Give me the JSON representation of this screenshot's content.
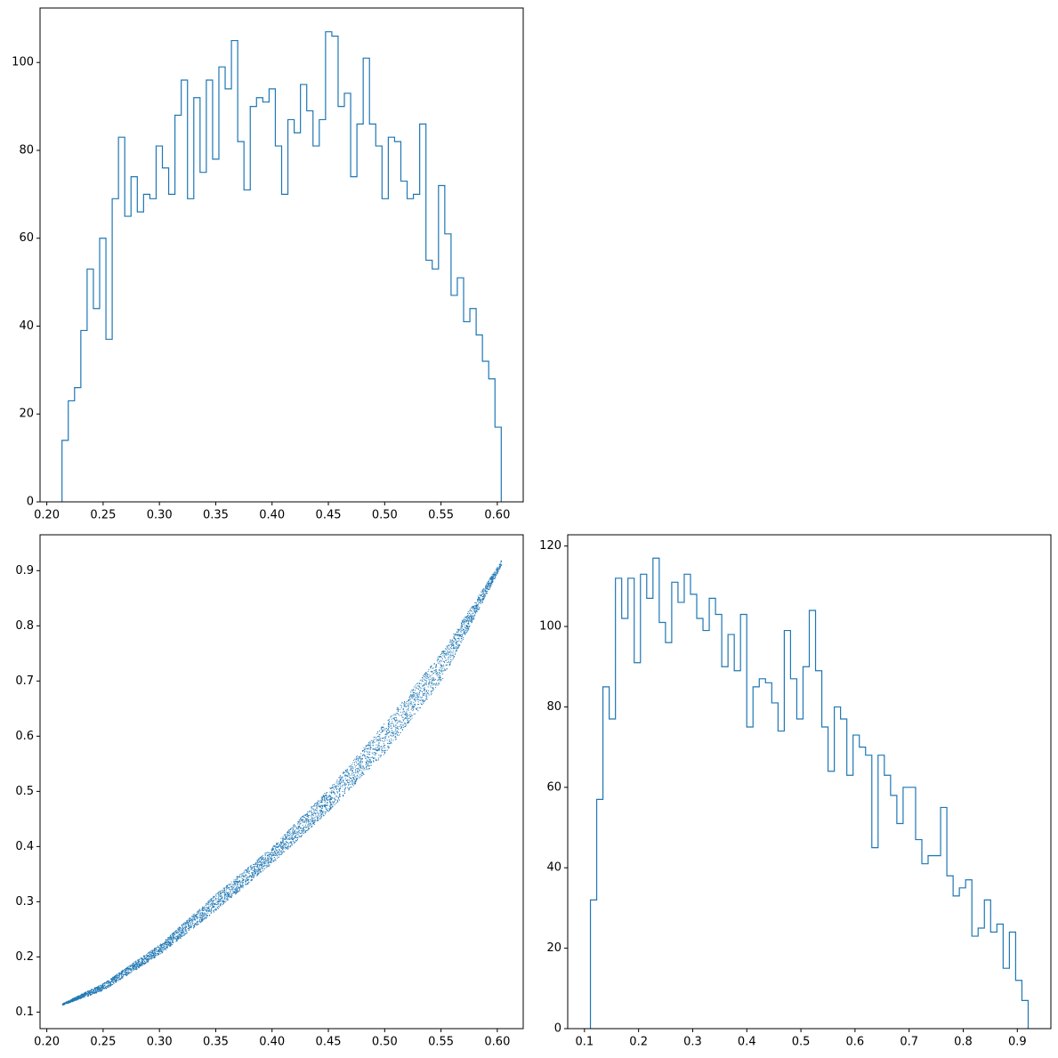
{
  "figure": {
    "accent": "#1f77b4"
  },
  "chart_data": [
    {
      "id": "hist-top-left",
      "type": "histogram",
      "title": "",
      "xlabel": "",
      "ylabel": "",
      "xlim": [
        0.194,
        0.623
      ],
      "ylim": [
        0,
        112.4
      ],
      "xticks": [
        0.2,
        0.25,
        0.3,
        0.35,
        0.4,
        0.45,
        0.5,
        0.55,
        0.6
      ],
      "xtick_labels": [
        "0.20",
        "0.25",
        "0.30",
        "0.35",
        "0.40",
        "0.45",
        "0.50",
        "0.55",
        "0.60"
      ],
      "yticks": [
        0,
        20,
        40,
        60,
        80,
        100
      ],
      "ytick_labels": [
        "0",
        "20",
        "40",
        "60",
        "80",
        "100"
      ],
      "bin_start": 0.2135,
      "bin_end": 0.6035,
      "color": "#1f77b4",
      "counts": [
        14,
        23,
        26,
        39,
        53,
        44,
        60,
        37,
        69,
        83,
        65,
        74,
        66,
        70,
        69,
        81,
        76,
        70,
        88,
        96,
        69,
        92,
        75,
        96,
        78,
        99,
        94,
        105,
        82,
        71,
        90,
        92,
        91,
        94,
        81,
        70,
        87,
        84,
        95,
        89,
        81,
        87,
        107,
        106,
        90,
        93,
        74,
        86,
        101,
        86,
        81,
        69,
        83,
        82,
        73,
        69,
        70,
        86,
        55,
        53,
        72,
        61,
        47,
        51,
        41,
        44,
        38,
        32,
        28,
        17
      ]
    },
    {
      "id": "scatter-bottom-left",
      "type": "scatter",
      "title": "",
      "xlabel": "",
      "ylabel": "",
      "xlim": [
        0.194,
        0.623
      ],
      "ylim": [
        0.07,
        0.965
      ],
      "xticks": [
        0.2,
        0.25,
        0.3,
        0.35,
        0.4,
        0.45,
        0.5,
        0.55,
        0.6
      ],
      "xtick_labels": [
        "0.20",
        "0.25",
        "0.30",
        "0.35",
        "0.40",
        "0.45",
        "0.50",
        "0.55",
        "0.60"
      ],
      "yticks": [
        0.1,
        0.2,
        0.3,
        0.4,
        0.5,
        0.6,
        0.7,
        0.8,
        0.9
      ],
      "ytick_labels": [
        "0.1",
        "0.2",
        "0.3",
        "0.4",
        "0.5",
        "0.6",
        "0.7",
        "0.8",
        "0.9"
      ],
      "color": "#1f77b4",
      "x_range": [
        0.2135,
        0.6035
      ],
      "y_range": [
        0.113,
        0.92
      ],
      "point_count": 5000,
      "band": {
        "upper": [
          [
            0.2135,
            0.116
          ],
          [
            0.25,
            0.153
          ],
          [
            0.3,
            0.223
          ],
          [
            0.35,
            0.315
          ],
          [
            0.4,
            0.4
          ],
          [
            0.45,
            0.505
          ],
          [
            0.5,
            0.625
          ],
          [
            0.55,
            0.752
          ],
          [
            0.6035,
            0.92
          ]
        ],
        "lower": [
          [
            0.2135,
            0.113
          ],
          [
            0.25,
            0.14
          ],
          [
            0.3,
            0.205
          ],
          [
            0.35,
            0.285
          ],
          [
            0.4,
            0.37
          ],
          [
            0.45,
            0.465
          ],
          [
            0.5,
            0.57
          ],
          [
            0.55,
            0.7
          ],
          [
            0.6035,
            0.91
          ]
        ]
      }
    },
    {
      "id": "hist-bottom-right",
      "type": "histogram",
      "title": "",
      "xlabel": "",
      "ylabel": "",
      "xlim": [
        0.069,
        0.962
      ],
      "ylim": [
        0,
        122.8
      ],
      "xticks": [
        0.1,
        0.2,
        0.3,
        0.4,
        0.5,
        0.6,
        0.7,
        0.8,
        0.9
      ],
      "xtick_labels": [
        "0.1",
        "0.2",
        "0.3",
        "0.4",
        "0.5",
        "0.6",
        "0.7",
        "0.8",
        "0.9"
      ],
      "yticks": [
        0,
        20,
        40,
        60,
        80,
        100,
        120
      ],
      "ytick_labels": [
        "0",
        "20",
        "40",
        "60",
        "80",
        "100",
        "120"
      ],
      "bin_start": 0.111,
      "bin_end": 0.92,
      "color": "#1f77b4",
      "counts": [
        32,
        57,
        85,
        77,
        112,
        102,
        112,
        91,
        113,
        107,
        117,
        101,
        96,
        111,
        106,
        113,
        108,
        102,
        99,
        107,
        103,
        90,
        98,
        89,
        103,
        75,
        85,
        87,
        86,
        81,
        74,
        99,
        87,
        77,
        90,
        104,
        89,
        75,
        64,
        80,
        77,
        63,
        73,
        70,
        68,
        45,
        68,
        63,
        58,
        51,
        60,
        60,
        47,
        41,
        43,
        43,
        55,
        38,
        33,
        35,
        37,
        23,
        25,
        32,
        24,
        26,
        15,
        24,
        12,
        7
      ]
    }
  ]
}
